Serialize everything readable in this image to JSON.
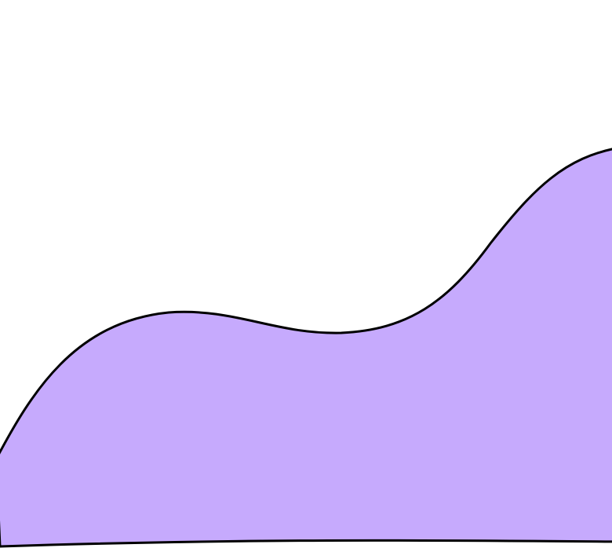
{
  "colors": {
    "background": "#ffffff",
    "shape_fill": "#c6aafd",
    "shape_stroke": "#000000"
  }
}
